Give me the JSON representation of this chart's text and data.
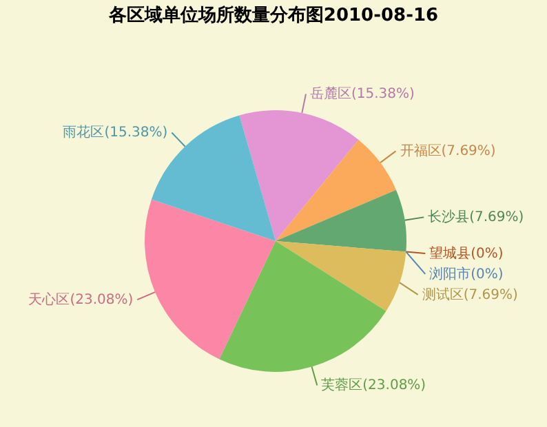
{
  "chart_data": {
    "type": "pie",
    "title": "各区域单位场所数量分布图2010-08-16",
    "categories": [
      "岳麓区",
      "开福区",
      "长沙县",
      "望城县",
      "浏阳市",
      "测试区",
      "芙蓉区",
      "天心区",
      "雨花区"
    ],
    "values": [
      15.38,
      7.69,
      7.69,
      0,
      0,
      7.69,
      23.08,
      23.08,
      15.38
    ],
    "colors": [
      "#e496d4",
      "#fba95b",
      "#63a870",
      "#e06a2c",
      "#6aa6dc",
      "#dcbc5c",
      "#78c25a",
      "#fb86a6",
      "#63bcd1"
    ],
    "value_labels": [
      "(15.38%)",
      "(7.69%)",
      "(7.69%)",
      "(0%)",
      "(0%)",
      "(7.69%)",
      "(23.08%)",
      "(23.08%)",
      "(15.38%)"
    ]
  }
}
